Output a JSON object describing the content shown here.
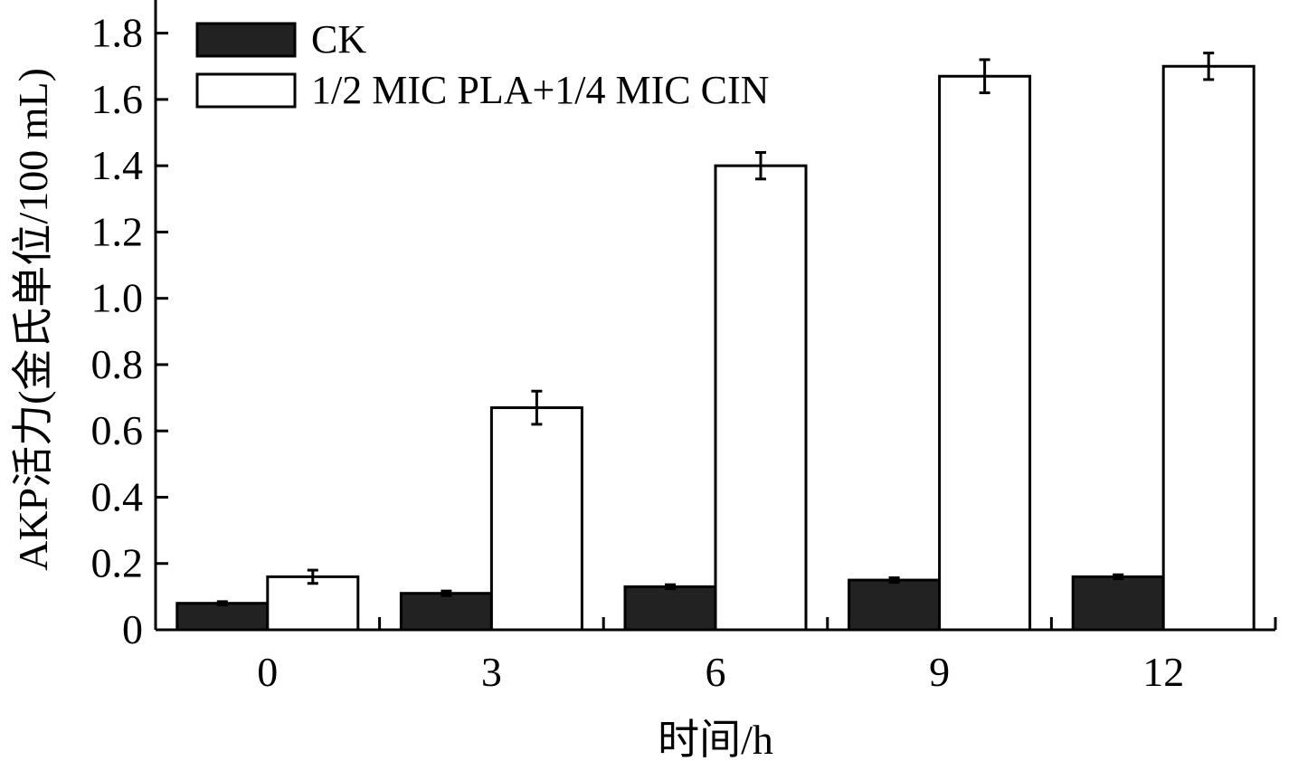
{
  "chart_data": {
    "type": "bar",
    "categories": [
      "0",
      "3",
      "6",
      "9",
      "12"
    ],
    "series": [
      {
        "name": "CK",
        "values": [
          0.08,
          0.11,
          0.13,
          0.15,
          0.16
        ],
        "errors": [
          0.005,
          0.007,
          0.006,
          0.007,
          0.006
        ],
        "color": "#222222"
      },
      {
        "name": "1/2 MIC PLA+1/4 MIC CIN",
        "values": [
          0.16,
          0.67,
          1.4,
          1.67,
          1.7
        ],
        "errors": [
          0.02,
          0.05,
          0.04,
          0.05,
          0.04
        ],
        "color": "#ffffff"
      }
    ],
    "xlabel": "时间/h",
    "ylabel": "AKP活力(金氏单位/100 mL)",
    "ylim": [
      0,
      1.9
    ],
    "yticks": [
      0,
      0.2,
      0.4,
      0.6,
      0.8,
      1.0,
      1.2,
      1.4,
      1.6,
      1.8
    ],
    "ytick_labels": [
      "0",
      "0.2",
      "0.4",
      "0.6",
      "0.8",
      "1.0",
      "1.2",
      "1.4",
      "1.6",
      "1.8"
    ],
    "legend_position": "top-left",
    "grid": false
  }
}
